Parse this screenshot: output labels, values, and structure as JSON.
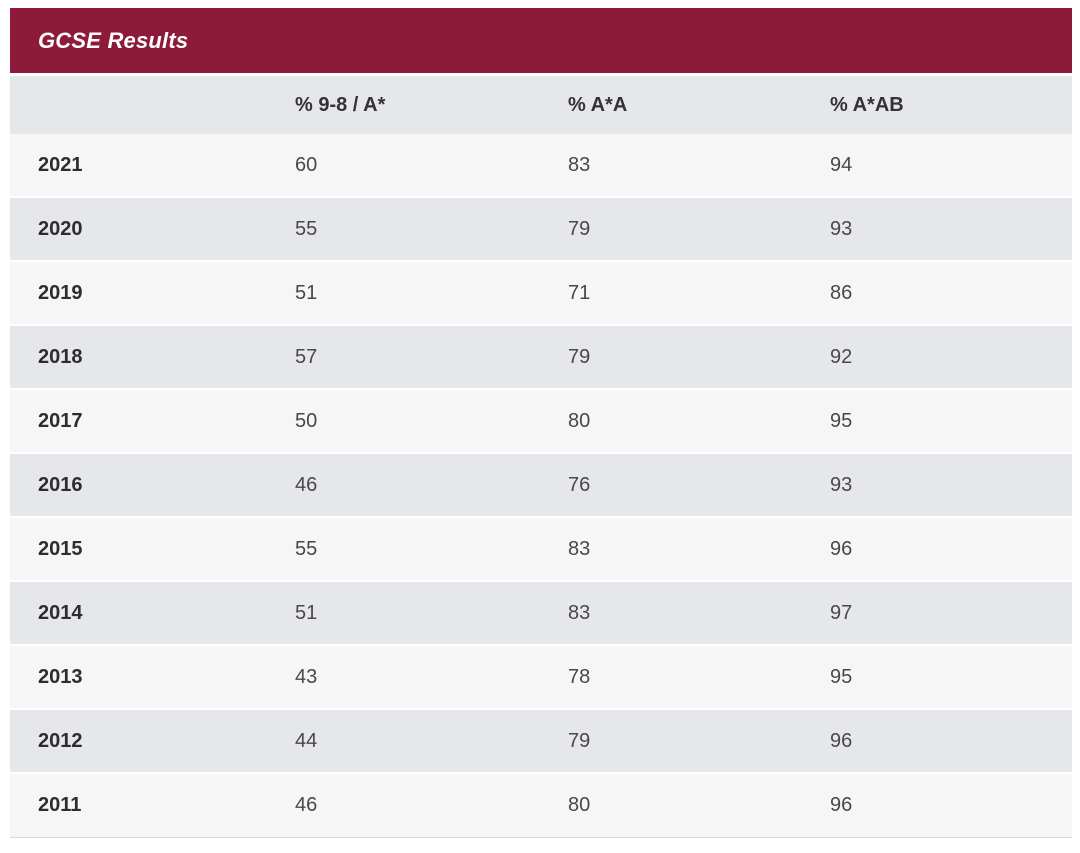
{
  "accent_color": "#8e1a39",
  "row_stripe_colors": {
    "light": "#f6f6f7",
    "dark": "#e6e7ea"
  },
  "table": {
    "title": "GCSE Results",
    "columns": [
      "",
      "% 9-8 / A*",
      "% A*A",
      "% A*AB"
    ],
    "rows": [
      {
        "year": "2021",
        "values": [
          "60",
          "83",
          "94"
        ]
      },
      {
        "year": "2020",
        "values": [
          "55",
          "79",
          "93"
        ]
      },
      {
        "year": "2019",
        "values": [
          "51",
          "71",
          "86"
        ]
      },
      {
        "year": "2018",
        "values": [
          "57",
          "79",
          "92"
        ]
      },
      {
        "year": "2017",
        "values": [
          "50",
          "80",
          "95"
        ]
      },
      {
        "year": "2016",
        "values": [
          "46",
          "76",
          "93"
        ]
      },
      {
        "year": "2015",
        "values": [
          "55",
          "83",
          "96"
        ]
      },
      {
        "year": "2014",
        "values": [
          "51",
          "83",
          "97"
        ]
      },
      {
        "year": "2013",
        "values": [
          "43",
          "78",
          "95"
        ]
      },
      {
        "year": "2012",
        "values": [
          "44",
          "79",
          "96"
        ]
      },
      {
        "year": "2011",
        "values": [
          "46",
          "80",
          "96"
        ]
      }
    ]
  },
  "chart_data": {
    "type": "table",
    "title": "GCSE Results",
    "categories": [
      "2021",
      "2020",
      "2019",
      "2018",
      "2017",
      "2016",
      "2015",
      "2014",
      "2013",
      "2012",
      "2011"
    ],
    "series": [
      {
        "name": "% 9-8 / A*",
        "values": [
          60,
          55,
          51,
          57,
          50,
          46,
          55,
          51,
          43,
          44,
          46
        ]
      },
      {
        "name": "% A*A",
        "values": [
          83,
          79,
          71,
          79,
          80,
          76,
          83,
          83,
          78,
          79,
          80
        ]
      },
      {
        "name": "% A*AB",
        "values": [
          94,
          93,
          86,
          92,
          95,
          93,
          96,
          97,
          95,
          96,
          96
        ]
      }
    ]
  }
}
